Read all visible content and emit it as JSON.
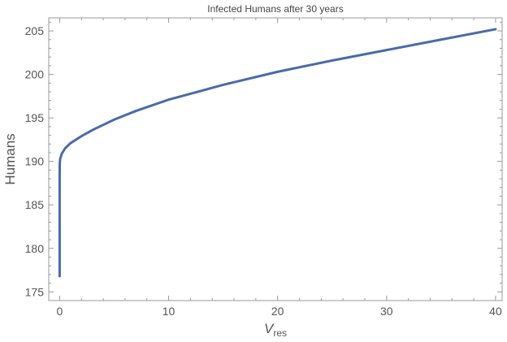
{
  "chart_data": {
    "type": "line",
    "title": "Infected Humans after 30 years",
    "xlabel_main": "V",
    "xlabel_sub": "res",
    "ylabel": "Humans",
    "xlim": [
      -1,
      40.6
    ],
    "ylim": [
      174,
      206.5
    ],
    "xticks": [
      0,
      10,
      20,
      30,
      40
    ],
    "yticks": [
      175,
      180,
      185,
      190,
      195,
      200,
      205
    ],
    "grid": false,
    "legend": "none",
    "series": [
      {
        "color": "#4a6ba8",
        "x": [
          0,
          0.001,
          0.01,
          0.05,
          0.1,
          0.2,
          0.5,
          1,
          2,
          3,
          5,
          7,
          10,
          15,
          20,
          25,
          30,
          35,
          40
        ],
        "y": [
          176.8,
          188.5,
          189.8,
          190.3,
          190.5,
          190.9,
          191.5,
          192.1,
          192.9,
          193.6,
          194.8,
          195.8,
          197.1,
          198.8,
          200.3,
          201.6,
          202.8,
          204.0,
          205.2
        ]
      }
    ]
  }
}
